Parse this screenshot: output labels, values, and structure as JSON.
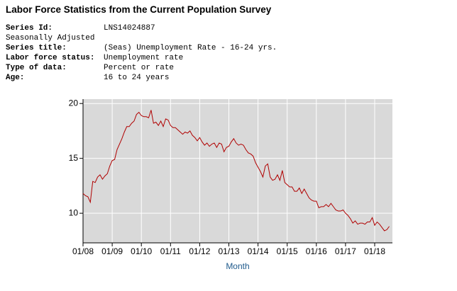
{
  "header": {
    "title": "Labor Force Statistics from the Current Population Survey",
    "series_id": {
      "label": "Series Id:",
      "value": "LNS14024887"
    },
    "seasonal": "Seasonally Adjusted",
    "fields": [
      {
        "label": "Series title:",
        "value": "(Seas) Unemployment Rate - 16-24 yrs."
      },
      {
        "label": "Labor force status:",
        "value": "Unemployment rate"
      },
      {
        "label": "Type of data:",
        "value": "Percent or rate"
      },
      {
        "label": "Age:",
        "value": "16 to 24 years"
      }
    ]
  },
  "chart_data": {
    "type": "line",
    "x_label": "Month",
    "x": [
      "01/08",
      "02/08",
      "03/08",
      "04/08",
      "05/08",
      "06/08",
      "07/08",
      "08/08",
      "09/08",
      "10/08",
      "11/08",
      "12/08",
      "01/09",
      "02/09",
      "03/09",
      "04/09",
      "05/09",
      "06/09",
      "07/09",
      "08/09",
      "09/09",
      "10/09",
      "11/09",
      "12/09",
      "01/10",
      "02/10",
      "03/10",
      "04/10",
      "05/10",
      "06/10",
      "07/10",
      "08/10",
      "09/10",
      "10/10",
      "11/10",
      "12/10",
      "01/11",
      "02/11",
      "03/11",
      "04/11",
      "05/11",
      "06/11",
      "07/11",
      "08/11",
      "09/11",
      "10/11",
      "11/11",
      "12/11",
      "01/12",
      "02/12",
      "03/12",
      "04/12",
      "05/12",
      "06/12",
      "07/12",
      "08/12",
      "09/12",
      "10/12",
      "11/12",
      "12/12",
      "01/13",
      "02/13",
      "03/13",
      "04/13",
      "05/13",
      "06/13",
      "07/13",
      "08/13",
      "09/13",
      "10/13",
      "11/13",
      "12/13",
      "01/14",
      "02/14",
      "03/14",
      "04/14",
      "05/14",
      "06/14",
      "07/14",
      "08/14",
      "09/14",
      "10/14",
      "11/14",
      "12/14",
      "01/15",
      "02/15",
      "03/15",
      "04/15",
      "05/15",
      "06/15",
      "07/15",
      "08/15",
      "09/15",
      "10/15",
      "11/15",
      "12/15",
      "01/16",
      "02/16",
      "03/16",
      "04/16",
      "05/16",
      "06/16",
      "07/16",
      "08/16",
      "09/16",
      "10/16",
      "11/16",
      "12/16",
      "01/17",
      "02/17",
      "03/17",
      "04/17",
      "05/17",
      "06/17",
      "07/17",
      "08/17",
      "09/17",
      "10/17",
      "11/17",
      "12/17",
      "01/18",
      "02/18",
      "03/18",
      "04/18",
      "05/18",
      "06/18",
      "07/18"
    ],
    "series": [
      {
        "name": "LNS14024887",
        "color": "#b00000",
        "values": [
          11.8,
          11.6,
          11.5,
          11.0,
          12.9,
          12.8,
          13.3,
          13.5,
          13.1,
          13.4,
          13.6,
          14.3,
          14.8,
          14.9,
          15.8,
          16.3,
          16.8,
          17.4,
          17.9,
          17.9,
          18.2,
          18.4,
          19.0,
          19.2,
          18.9,
          18.8,
          18.8,
          18.7,
          19.4,
          18.2,
          18.3,
          18.0,
          18.4,
          17.9,
          18.6,
          18.5,
          18.0,
          17.8,
          17.8,
          17.6,
          17.4,
          17.2,
          17.4,
          17.3,
          17.5,
          17.1,
          16.9,
          16.6,
          16.9,
          16.5,
          16.2,
          16.4,
          16.1,
          16.3,
          16.4,
          16.0,
          16.4,
          16.3,
          15.6,
          16.0,
          16.1,
          16.5,
          16.8,
          16.4,
          16.2,
          16.3,
          16.2,
          15.8,
          15.5,
          15.4,
          15.2,
          14.6,
          14.2,
          13.8,
          13.3,
          14.3,
          14.5,
          13.3,
          13.0,
          13.1,
          13.5,
          13.0,
          13.9,
          12.8,
          12.6,
          12.4,
          12.4,
          12.0,
          12.0,
          12.3,
          11.8,
          12.2,
          11.8,
          11.4,
          11.2,
          11.1,
          11.1,
          10.5,
          10.6,
          10.6,
          10.8,
          10.6,
          10.9,
          10.6,
          10.3,
          10.2,
          10.2,
          10.3,
          10.0,
          9.8,
          9.5,
          9.1,
          9.3,
          9.0,
          9.1,
          9.1,
          9.0,
          9.2,
          9.2,
          9.6,
          8.9,
          9.2,
          9.0,
          8.7,
          8.4,
          8.5,
          8.8
        ]
      }
    ],
    "xticks": [
      "01/08",
      "01/09",
      "01/10",
      "01/11",
      "01/12",
      "01/13",
      "01/14",
      "01/15",
      "01/16",
      "01/17",
      "01/18"
    ],
    "ylim": [
      7.3,
      20.4
    ],
    "yticks": [
      10,
      15,
      20
    ],
    "grid": true,
    "background": "#d9d9d9"
  }
}
